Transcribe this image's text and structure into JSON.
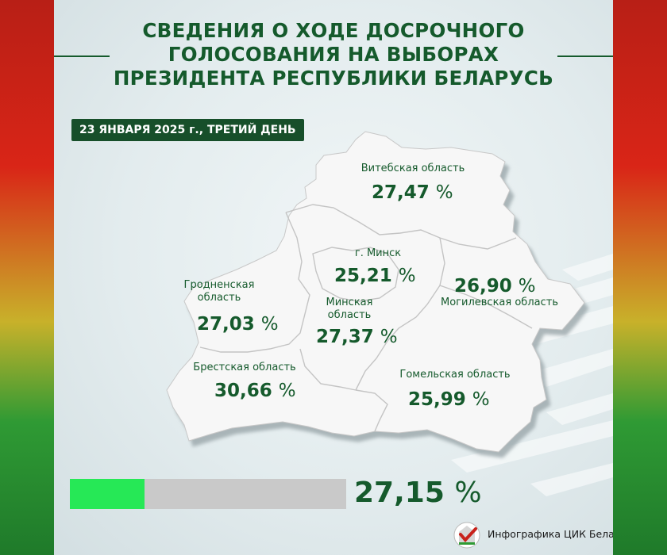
{
  "title": "СВЕДЕНИЯ О ХОДЕ ДОСРОЧНОГО\nГОЛОСОВАНИЯ НА ВЫБОРАХ\nПРЕЗИДЕНТА РЕСПУБЛИКИ БЕЛАРУСЬ",
  "date_badge": "23 ЯНВАРЯ 2025 г., ТРЕТИЙ ДЕНЬ",
  "regions": [
    {
      "id": "vitebsk",
      "label": "Витебская область",
      "value": "27,47",
      "unit": "%"
    },
    {
      "id": "minsk-city",
      "label": "г. Минск",
      "value": "25,21",
      "unit": "%"
    },
    {
      "id": "mogilev",
      "label": "Могилевская область",
      "value": "26,90",
      "unit": "%"
    },
    {
      "id": "grodno",
      "label": "Гродненская\nобласть",
      "value": "27,03",
      "unit": "%"
    },
    {
      "id": "minsk-region",
      "label": "Минская\nобласть",
      "value": "27,37",
      "unit": "%"
    },
    {
      "id": "brest",
      "label": "Брестская область",
      "value": "30,66",
      "unit": "%"
    },
    {
      "id": "gomel",
      "label": "Гомельская область",
      "value": "25,99",
      "unit": "%"
    }
  ],
  "total": {
    "value": "27,15",
    "unit": "%",
    "progress_fraction": 0.2715
  },
  "credit": "Инфографика ЦИК Беларуси",
  "colors": {
    "title_green": "#155a2c",
    "badge_green": "#174f2a",
    "bar_fill": "#26e856",
    "bar_track": "#c9c9c9",
    "flag_red": "#d92517",
    "flag_green": "#2f9a34",
    "map_fill": "#f7f7f7"
  },
  "icons": {
    "logo": "cec-belarus-emblem-icon"
  }
}
